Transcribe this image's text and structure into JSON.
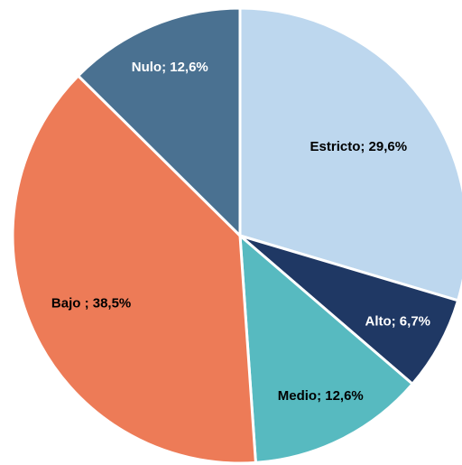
{
  "chart_data": {
    "type": "pie",
    "values": [
      29.6,
      6.7,
      12.6,
      38.5,
      12.6
    ],
    "value_labels": [
      "Estricto; 29,6%",
      "Alto; 6,7%",
      "Medio; 12,6%",
      "Bajo ; 38,5%",
      "Nulo; 12,6%"
    ],
    "colors": [
      "#bdd7ee",
      "#1f3864",
      "#57bac0",
      "#ed7b57",
      "#4a7191"
    ]
  }
}
